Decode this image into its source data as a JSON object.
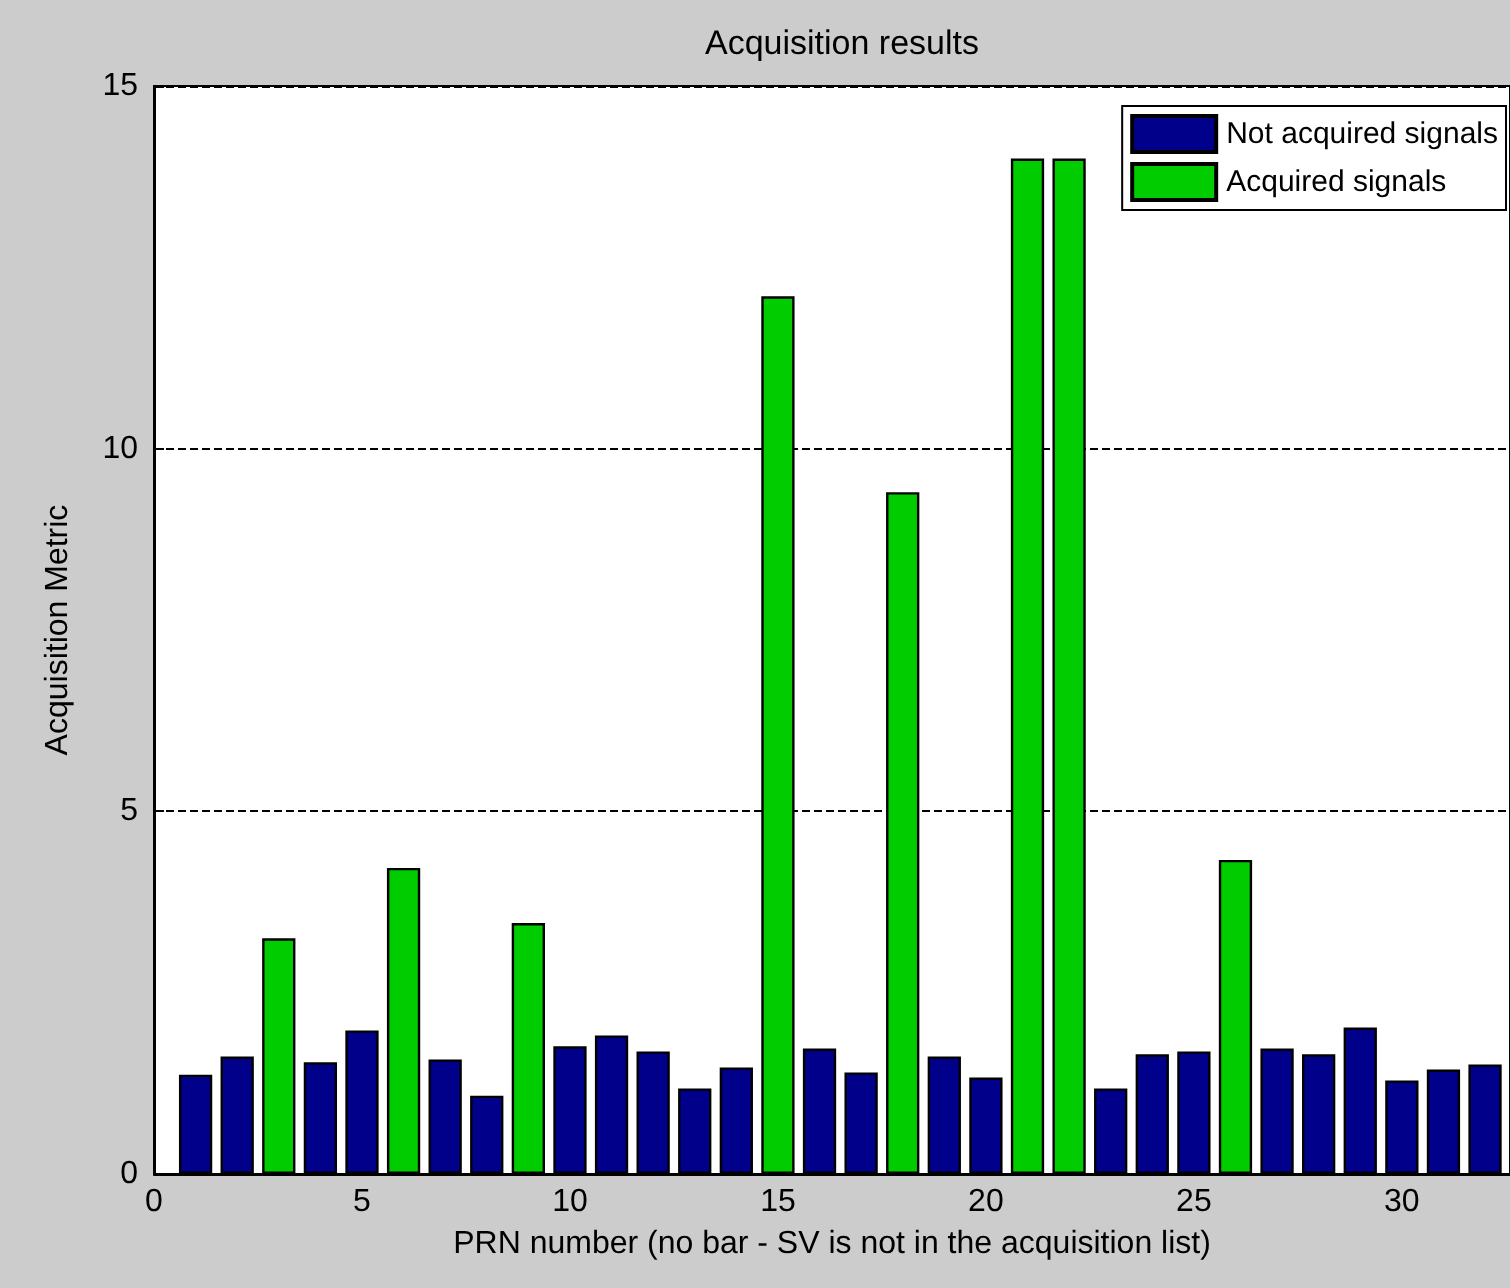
{
  "chart_data": {
    "type": "bar",
    "title": "Acquisition results",
    "xlabel": "PRN number (no bar - SV is not in the acquisition list)",
    "ylabel": "Acquisition Metric",
    "series": [
      {
        "name": "Not acquired signals",
        "color": "#00008b",
        "x": [
          1,
          2,
          4,
          5,
          7,
          8,
          10,
          11,
          12,
          13,
          14,
          16,
          17,
          19,
          20,
          23,
          24,
          25,
          27,
          28,
          29,
          30,
          31,
          32
        ],
        "values": [
          1.37,
          1.62,
          1.54,
          1.98,
          1.58,
          1.08,
          1.76,
          1.91,
          1.69,
          1.18,
          1.47,
          1.73,
          1.4,
          1.62,
          1.33,
          1.18,
          1.65,
          1.69,
          1.73,
          1.65,
          2.02,
          1.29,
          1.44,
          1.51
        ]
      },
      {
        "name": "Acquired signals",
        "color": "#00cc00",
        "x": [
          3,
          6,
          9,
          15,
          18,
          21,
          22,
          26
        ],
        "values": [
          3.25,
          4.22,
          3.46,
          12.1,
          9.4,
          14,
          14,
          4.33
        ]
      }
    ],
    "xlim": [
      0,
      32.6
    ],
    "xticks": [
      0,
      5,
      10,
      15,
      20,
      25,
      30
    ],
    "ylim": [
      0,
      15
    ],
    "yticks": [
      0,
      5,
      10,
      15
    ],
    "grid": "y",
    "legend": "top right"
  }
}
